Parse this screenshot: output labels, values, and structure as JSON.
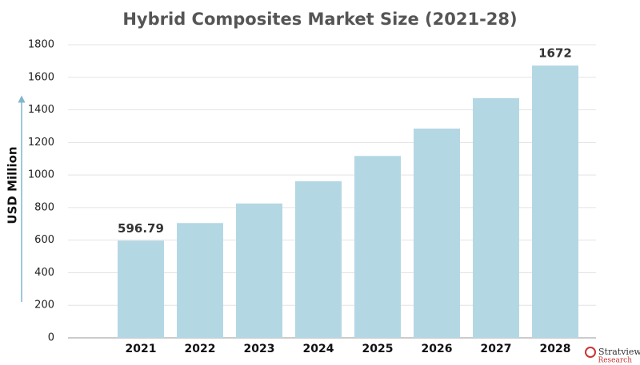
{
  "chart_data": {
    "type": "bar",
    "title": "Hybrid Composites Market Size (2021-28)",
    "y_label": "USD Million",
    "categories": [
      "2021",
      "2022",
      "2023",
      "2024",
      "2025",
      "2026",
      "2027",
      "2028"
    ],
    "values": [
      596.79,
      705,
      825,
      962,
      1117,
      1285,
      1472,
      1672
    ],
    "value_labels": [
      "596.79",
      null,
      null,
      null,
      null,
      null,
      null,
      "1672"
    ],
    "color": "#b4d7e4",
    "ylim": [
      0,
      1800
    ],
    "yticks": [
      0,
      200,
      400,
      600,
      800,
      1000,
      1200,
      1400,
      1600,
      1800
    ],
    "grid": true,
    "logo": {
      "name": "Stratview",
      "sub": "Research"
    }
  }
}
